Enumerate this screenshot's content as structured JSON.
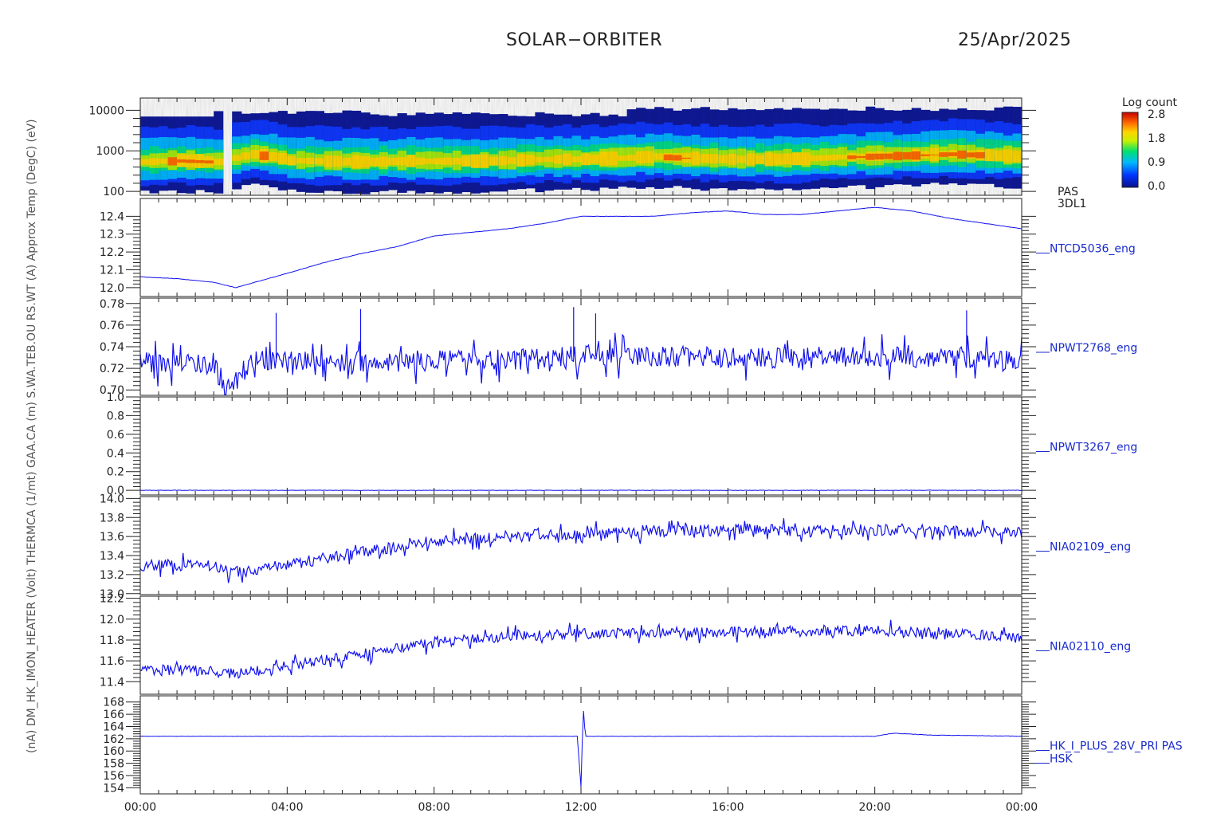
{
  "header": {
    "mission": "SOLAR−ORBITER",
    "date": "25/Apr/2025"
  },
  "colorbar": {
    "title": "Log count",
    "ticks": [
      "2.8",
      "1.8",
      "0.9",
      "0.0"
    ]
  },
  "x_axis": {
    "ticks": [
      "00:00",
      "04:00",
      "08:00",
      "12:00",
      "16:00",
      "20:00",
      "00:00"
    ]
  },
  "y_axis_overlap_text": "(nA) DM_HK_IMON_HEATER (Volt) THERMCA (1/mt) GAA.CA (m) S.WA.TEB.OU RS.WT (A) Approx Temp (DegC) (eV)",
  "chart_data": [
    {
      "type": "heatmap",
      "panel": "PAS 3DL1 energy spectrogram",
      "ylabel_right": [
        "PAS",
        "3DL1"
      ],
      "yscale": "log",
      "ytick_labels": [
        "10000",
        "1000",
        "100"
      ],
      "ylim": [
        80,
        20000
      ],
      "colorbar_label": "Log count",
      "colorbar_range": [
        0.0,
        2.8
      ],
      "peak_energy_eV": [
        [
          0,
          520
        ],
        [
          1,
          560
        ],
        [
          2,
          520
        ],
        [
          2.5,
          650
        ],
        [
          3,
          800
        ],
        [
          3.5,
          700
        ],
        [
          4,
          560
        ],
        [
          5,
          540
        ],
        [
          6,
          520
        ],
        [
          7,
          540
        ],
        [
          8,
          540
        ],
        [
          9,
          540
        ],
        [
          10,
          560
        ],
        [
          11,
          600
        ],
        [
          12,
          600
        ],
        [
          13,
          640
        ],
        [
          14,
          700
        ],
        [
          15,
          640
        ],
        [
          16,
          600
        ],
        [
          17,
          600
        ],
        [
          18,
          620
        ],
        [
          19,
          680
        ],
        [
          20,
          720
        ],
        [
          21,
          760
        ],
        [
          22,
          820
        ],
        [
          23,
          760
        ],
        [
          24,
          700
        ]
      ],
      "data_gap_hours": [
        2.05,
        2.5
      ]
    },
    {
      "type": "line",
      "series_name": "NTCD5036_eng",
      "ylim": [
        11.95,
        12.5
      ],
      "ytick_labels": [
        "12.4",
        "12.3",
        "12.2",
        "12.1",
        "12.0"
      ],
      "x_hours": [
        0,
        1,
        2,
        2.6,
        4,
        5,
        6,
        7,
        8,
        9,
        10,
        11,
        12,
        13,
        14,
        15,
        16,
        17,
        18,
        19,
        20,
        21,
        22,
        23,
        24
      ],
      "y": [
        12.06,
        12.05,
        12.03,
        12.0,
        12.08,
        12.14,
        12.19,
        12.23,
        12.29,
        12.31,
        12.33,
        12.36,
        12.4,
        12.4,
        12.4,
        12.42,
        12.43,
        12.41,
        12.41,
        12.43,
        12.45,
        12.43,
        12.39,
        12.36,
        12.33
      ]
    },
    {
      "type": "line",
      "series_name": "NPWT2768_eng",
      "ylim": [
        0.695,
        0.785
      ],
      "ytick_labels": [
        "0.78",
        "0.76",
        "0.74",
        "0.72",
        "0.70"
      ],
      "x_hours": [
        0,
        2,
        2.2,
        2.5,
        3,
        6,
        9,
        11,
        12,
        14,
        16,
        18,
        20,
        22,
        24
      ],
      "y": [
        0.725,
        0.725,
        0.705,
        0.705,
        0.726,
        0.726,
        0.727,
        0.729,
        0.731,
        0.731,
        0.73,
        0.73,
        0.73,
        0.73,
        0.728
      ],
      "noise_band": 0.01,
      "max_spike": 0.778
    },
    {
      "type": "line",
      "series_name": "NPWT3267_eng",
      "ylim": [
        -0.05,
        1.0
      ],
      "ytick_labels": [
        "1.0",
        "0.8",
        "0.6",
        "0.4",
        "0.2",
        "0.0"
      ],
      "x_hours": [
        0,
        24
      ],
      "y": [
        0.0,
        0.0
      ]
    },
    {
      "type": "line",
      "series_name": "NIA02109_eng",
      "ylim": [
        12.99,
        14.02
      ],
      "ytick_labels": [
        "14.0",
        "13.8",
        "13.6",
        "13.4",
        "13.2",
        "13.0"
      ],
      "x_hours": [
        0,
        2,
        2.5,
        4,
        5,
        6,
        7,
        8,
        10,
        12,
        14,
        16,
        18,
        20,
        22,
        24
      ],
      "y": [
        13.3,
        13.3,
        13.22,
        13.3,
        13.37,
        13.43,
        13.5,
        13.55,
        13.6,
        13.63,
        13.65,
        13.68,
        13.66,
        13.67,
        13.66,
        13.64
      ],
      "noise_band": 0.06
    },
    {
      "type": "line",
      "series_name": "NIA02110_eng",
      "ylim": [
        11.28,
        12.22
      ],
      "ytick_labels": [
        "12.2",
        "12.0",
        "11.8",
        "11.6",
        "11.4"
      ],
      "x_hours": [
        0,
        2,
        2.5,
        4,
        5,
        6,
        7,
        8,
        10,
        12,
        14,
        16,
        18,
        20,
        22,
        24
      ],
      "y": [
        11.52,
        11.5,
        11.47,
        11.55,
        11.61,
        11.66,
        11.72,
        11.78,
        11.83,
        11.86,
        11.87,
        11.88,
        11.88,
        11.89,
        11.87,
        11.83
      ],
      "noise_band": 0.05
    },
    {
      "type": "line",
      "series_name": "HK_I_PLUS_28V_PRI PAS HSK",
      "ylabel_right": [
        "HK_I_PLUS_28V_PRI PAS",
        "HSK"
      ],
      "ylim": [
        153,
        169
      ],
      "ytick_labels": [
        "168",
        "166",
        "164",
        "162",
        "160",
        "158",
        "156",
        "154"
      ],
      "x_hours": [
        0,
        11.9,
        12.0,
        12.06,
        12.12,
        12.2,
        20,
        20.5,
        21.5,
        24
      ],
      "y": [
        162.4,
        162.4,
        154.2,
        167.2,
        162.4,
        162.4,
        162.4,
        162.9,
        162.6,
        162.4
      ]
    }
  ]
}
